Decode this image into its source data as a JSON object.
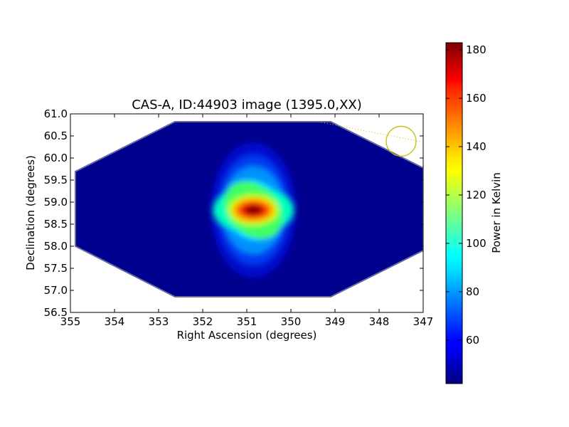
{
  "chart_data": {
    "type": "heatmap",
    "title": "CAS-A, ID:44903 image (1395.0,XX)",
    "xlabel": "Right Ascension (degrees)",
    "ylabel": "Declination (degrees)",
    "xlim": [
      355,
      347
    ],
    "ylim": [
      56.5,
      61.0
    ],
    "xticks": [
      "355",
      "354",
      "353",
      "352",
      "351",
      "350",
      "349",
      "348",
      "347"
    ],
    "yticks": [
      "56.5",
      "57.0",
      "57.5",
      "58.0",
      "58.5",
      "59.0",
      "59.5",
      "60.0",
      "60.5",
      "61.0"
    ],
    "grid": false,
    "colormap": "jet",
    "colorbar": {
      "label": "Power in Kelvin",
      "range": [
        42,
        183
      ],
      "ticks": [
        "60",
        "80",
        "100",
        "120",
        "140",
        "160",
        "180"
      ]
    },
    "source_peak": {
      "ra": 350.85,
      "dec": 58.82,
      "value": 183
    },
    "background_value": 42,
    "beam_marker": {
      "ra": 347.5,
      "dec": 60.38,
      "color": "#bfbf00"
    }
  }
}
